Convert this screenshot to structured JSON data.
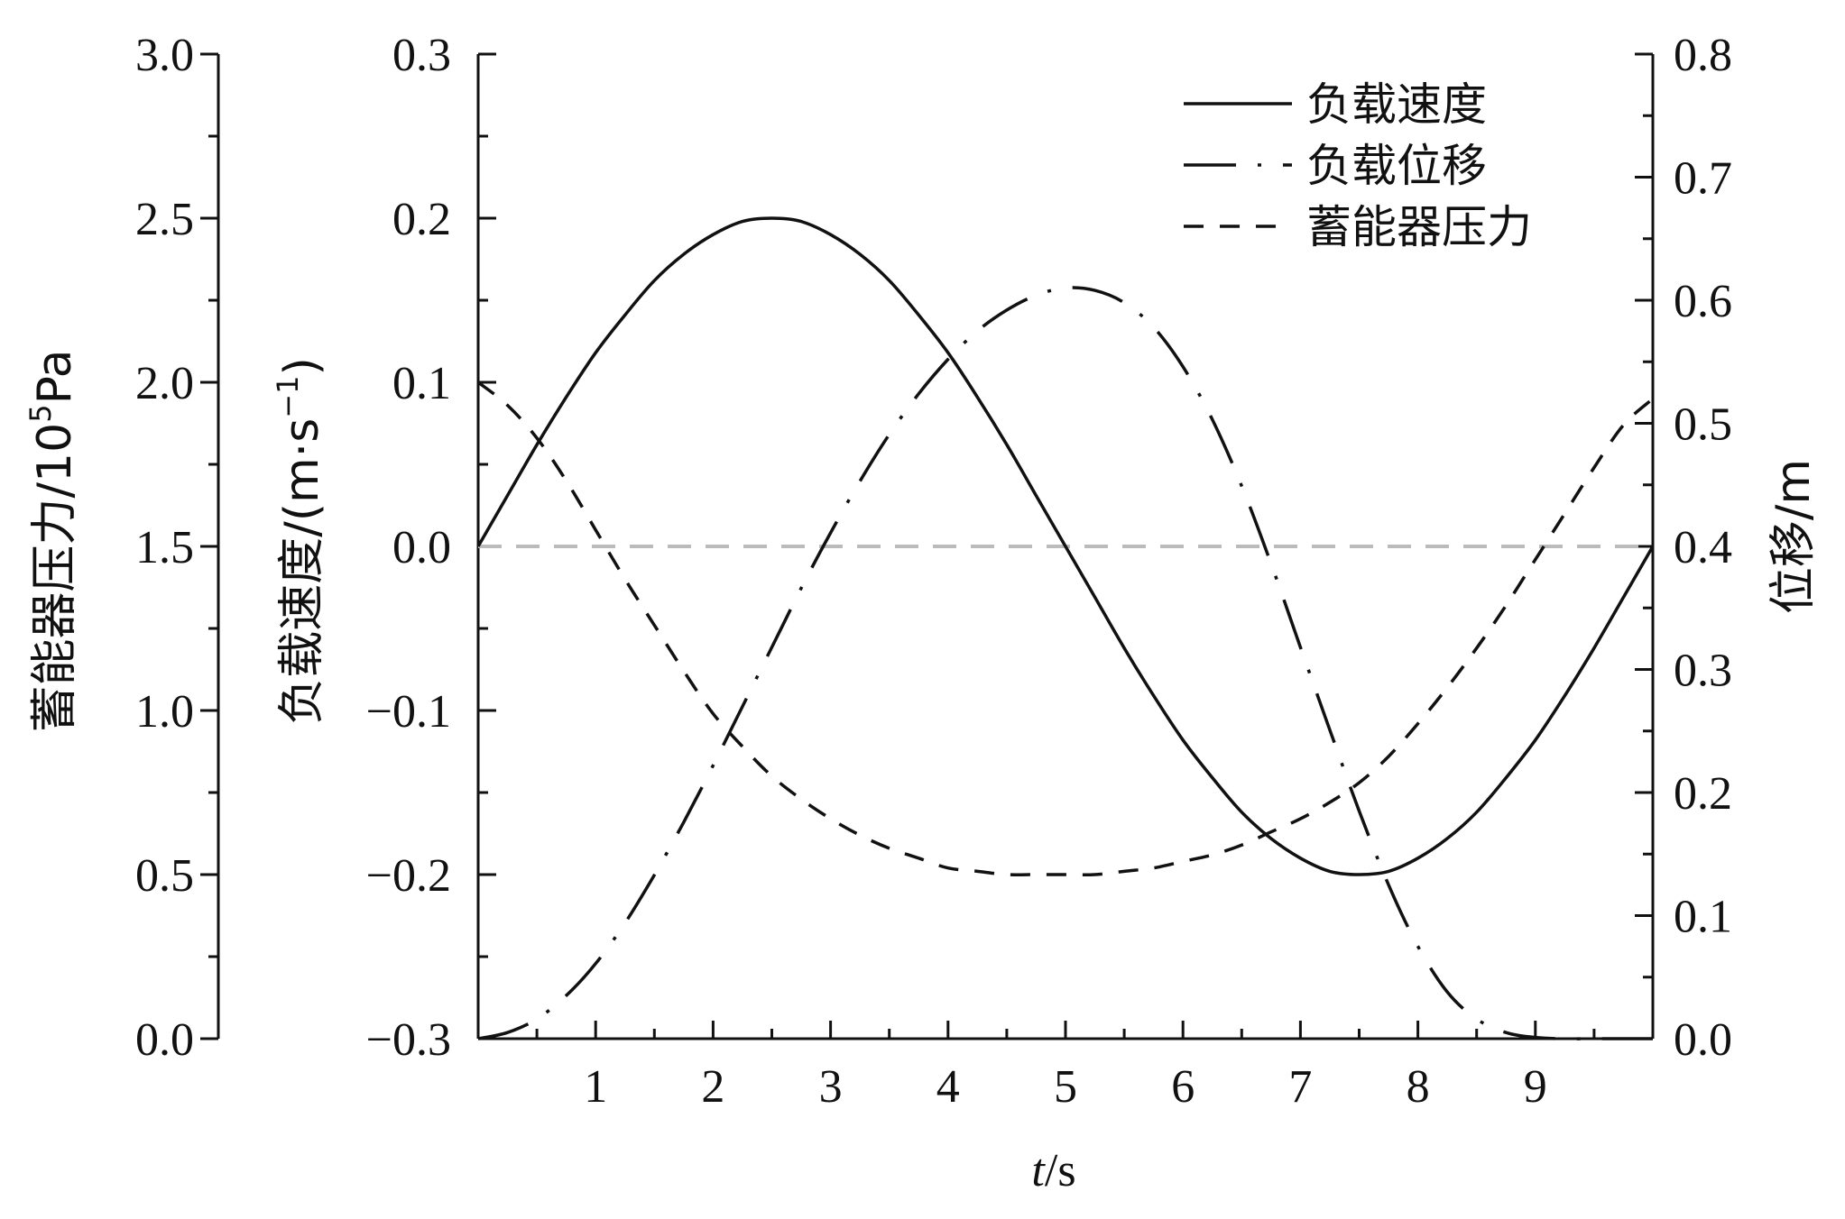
{
  "chart_data": {
    "type": "line",
    "x": [
      0,
      0.25,
      0.5,
      0.75,
      1,
      1.25,
      1.5,
      1.75,
      2,
      2.25,
      2.5,
      2.75,
      3,
      3.25,
      3.5,
      3.75,
      4,
      4.25,
      4.5,
      4.75,
      5,
      5.25,
      5.5,
      5.75,
      6,
      6.25,
      6.5,
      6.75,
      7,
      7.25,
      7.5,
      7.75,
      8,
      8.25,
      8.5,
      8.75,
      9,
      9.25,
      9.5,
      9.75,
      10
    ],
    "xlabel_italic": "t",
    "xlabel_unit": "/s",
    "xlim": [
      0,
      10
    ],
    "xticks": [
      1,
      2,
      3,
      4,
      5,
      6,
      7,
      8,
      9
    ],
    "axes": {
      "pressure": {
        "label": "蓄能器压力/10",
        "label_sup": "5",
        "label_tail": "Pa",
        "ylim": [
          0,
          3.0
        ],
        "ticks": [
          "0.0",
          "0.5",
          "1.0",
          "1.5",
          "2.0",
          "2.5",
          "3.0"
        ]
      },
      "velocity": {
        "label": "负载速度/(m·s",
        "label_sup": "−1",
        "label_tail": ")",
        "ylim": [
          -0.3,
          0.3
        ],
        "ticks": [
          "−0.3",
          "−0.2",
          "−0.1",
          "0.0",
          "0.1",
          "0.2",
          "0.3"
        ]
      },
      "displacement": {
        "label": "位移/m",
        "ylim": [
          0,
          0.8
        ],
        "ticks": [
          "0.0",
          "0.1",
          "0.2",
          "0.3",
          "0.4",
          "0.5",
          "0.6",
          "0.7",
          "0.8"
        ]
      }
    },
    "series": [
      {
        "name": "负载速度",
        "axis": "velocity",
        "style": "solid",
        "values": [
          0,
          0.031,
          0.062,
          0.091,
          0.118,
          0.141,
          0.162,
          0.178,
          0.19,
          0.198,
          0.2,
          0.198,
          0.19,
          0.178,
          0.162,
          0.141,
          0.118,
          0.091,
          0.062,
          0.031,
          0,
          -0.031,
          -0.062,
          -0.091,
          -0.118,
          -0.141,
          -0.162,
          -0.178,
          -0.19,
          -0.198,
          -0.2,
          -0.198,
          -0.19,
          -0.178,
          -0.162,
          -0.141,
          -0.118,
          -0.091,
          -0.062,
          -0.031,
          0
        ]
      },
      {
        "name": "负载位移",
        "axis": "displacement",
        "style": "dash-dot",
        "values": [
          0,
          0.005,
          0.016,
          0.035,
          0.061,
          0.094,
          0.133,
          0.176,
          0.222,
          0.27,
          0.318,
          0.366,
          0.411,
          0.453,
          0.491,
          0.524,
          0.552,
          0.575,
          0.592,
          0.604,
          0.61,
          0.608,
          0.598,
          0.578,
          0.546,
          0.503,
          0.449,
          0.386,
          0.318,
          0.251,
          0.185,
          0.125,
          0.075,
          0.038,
          0.016,
          0.005,
          0.001,
          0,
          0,
          0,
          0
        ]
      },
      {
        "name": "蓄能器压力",
        "axis": "pressure",
        "style": "dashed",
        "values": [
          2.0,
          1.93,
          1.83,
          1.7,
          1.55,
          1.4,
          1.26,
          1.12,
          0.99,
          0.89,
          0.8,
          0.73,
          0.67,
          0.62,
          0.58,
          0.55,
          0.52,
          0.51,
          0.5,
          0.5,
          0.5,
          0.5,
          0.51,
          0.52,
          0.54,
          0.56,
          0.59,
          0.63,
          0.67,
          0.72,
          0.78,
          0.86,
          0.96,
          1.07,
          1.19,
          1.32,
          1.46,
          1.6,
          1.74,
          1.87,
          1.95
        ]
      }
    ],
    "reference_line": {
      "axis": "velocity",
      "value": 0,
      "color": "#bbbbbb"
    },
    "legend_position": "top-right",
    "grid": false
  }
}
